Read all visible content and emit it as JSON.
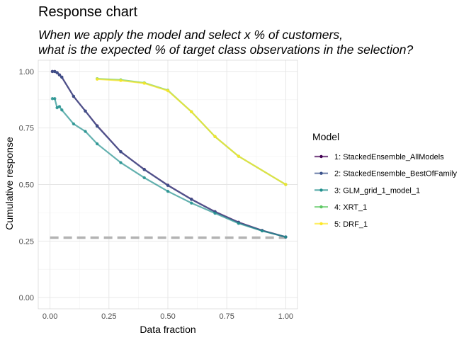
{
  "chart_data": {
    "type": "line",
    "title": "Response chart",
    "subtitle": [
      "When we apply the model and select x % of customers,",
      "what is the expected % of target class observations in the selection?"
    ],
    "xlabel": "Data fraction",
    "ylabel": "Cumulative response",
    "xlim": [
      -0.05,
      1.05
    ],
    "ylim": [
      -0.05,
      1.05
    ],
    "x_ticks": [
      0.0,
      0.25,
      0.5,
      0.75,
      1.0
    ],
    "x_tick_labels": [
      "0.00",
      "0.25",
      "0.50",
      "0.75",
      "1.00"
    ],
    "y_ticks": [
      0.0,
      0.25,
      0.5,
      0.75,
      1.0
    ],
    "y_tick_labels": [
      "0.00",
      "0.25",
      "0.50",
      "0.75",
      "1.00"
    ],
    "grid": true,
    "legend_position": "right",
    "legend_title": "Model",
    "baseline": {
      "value": 0.265,
      "color": "#b3b3b3",
      "style": "dashed"
    },
    "series": [
      {
        "name": "1: StackedEnsemble_AllModels",
        "color": "#440154",
        "x": [
          0.01,
          0.02,
          0.03,
          0.04,
          0.05,
          0.1,
          0.15,
          0.2,
          0.3,
          0.4,
          0.5,
          0.6,
          0.7,
          0.8,
          0.9,
          1.0
        ],
        "y": [
          1.0,
          1.0,
          0.995,
          0.985,
          0.975,
          0.89,
          0.825,
          0.76,
          0.645,
          0.567,
          0.497,
          0.435,
          0.38,
          0.333,
          0.297,
          0.268
        ]
      },
      {
        "name": "2: StackedEnsemble_BestOfFamily",
        "color": "#3b528b",
        "x": [
          0.01,
          0.02,
          0.03,
          0.04,
          0.05,
          0.1,
          0.15,
          0.2,
          0.3,
          0.4,
          0.5,
          0.6,
          0.7,
          0.8,
          0.9,
          1.0
        ],
        "y": [
          1.0,
          1.0,
          0.995,
          0.985,
          0.975,
          0.89,
          0.825,
          0.758,
          0.645,
          0.566,
          0.496,
          0.434,
          0.379,
          0.332,
          0.296,
          0.268
        ]
      },
      {
        "name": "3: GLM_grid_1_model_1",
        "color": "#21908d",
        "x": [
          0.01,
          0.02,
          0.03,
          0.04,
          0.05,
          0.1,
          0.15,
          0.2,
          0.3,
          0.4,
          0.5,
          0.6,
          0.7,
          0.8,
          0.9,
          1.0
        ],
        "y": [
          0.88,
          0.88,
          0.84,
          0.845,
          0.83,
          0.768,
          0.735,
          0.68,
          0.597,
          0.53,
          0.47,
          0.418,
          0.373,
          0.328,
          0.295,
          0.268
        ]
      },
      {
        "name": "4: XRT_1",
        "color": "#5dc863",
        "x": [
          0.2,
          0.3,
          0.4,
          0.5,
          0.6,
          0.7,
          0.8,
          1.0
        ],
        "y": [
          0.968,
          0.963,
          0.95,
          0.917,
          0.822,
          0.712,
          0.625,
          0.5
        ]
      },
      {
        "name": "5: DRF_1",
        "color": "#fde725",
        "x": [
          0.2,
          0.3,
          0.4,
          0.5,
          0.6,
          0.7,
          0.8,
          1.0
        ],
        "y": [
          0.966,
          0.96,
          0.948,
          0.915,
          0.822,
          0.712,
          0.625,
          0.5
        ]
      }
    ]
  }
}
